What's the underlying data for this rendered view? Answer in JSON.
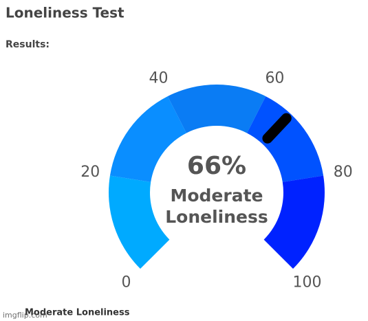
{
  "header": {
    "title": "Loneliness Test",
    "subtitle": "Results:"
  },
  "chart_data": {
    "type": "gauge",
    "value": 66,
    "value_label": "66%",
    "label_lines": [
      "Moderate",
      "Loneliness"
    ],
    "range": [
      0,
      100
    ],
    "ticks": [
      0,
      20,
      40,
      60,
      80,
      100
    ],
    "bands": [
      {
        "from": 0,
        "to": 20,
        "color": "#00aaff"
      },
      {
        "from": 20,
        "to": 40,
        "color": "#0a8eff"
      },
      {
        "from": 40,
        "to": 60,
        "color": "#0a7cf4"
      },
      {
        "from": 60,
        "to": 80,
        "color": "#0052ff"
      },
      {
        "from": 80,
        "to": 100,
        "color": "#0022ff"
      }
    ],
    "needle_color": "#000000"
  },
  "footer": {
    "result": "Moderate Loneliness",
    "watermark": "imgflip.com"
  }
}
